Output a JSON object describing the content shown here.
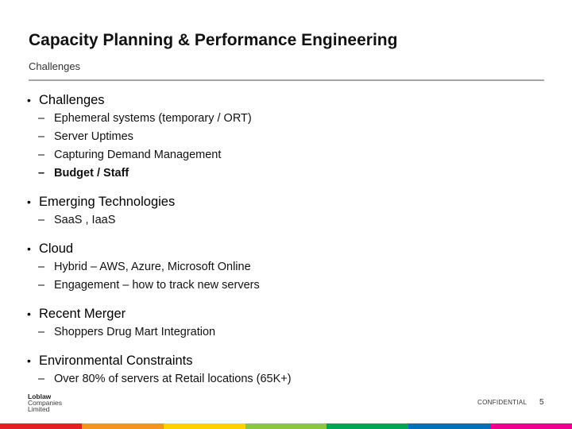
{
  "slide": {
    "title": "Capacity Planning & Performance Engineering",
    "subtitle": "Challenges"
  },
  "sections": [
    {
      "heading": "Challenges",
      "items": [
        {
          "text": "Ephemeral systems (temporary / ORT)"
        },
        {
          "text": "Server Uptimes"
        },
        {
          "text": "Capturing Demand Management"
        },
        {
          "text": "Budget / Staff",
          "bold": true
        }
      ]
    },
    {
      "heading": "Emerging Technologies",
      "items": [
        {
          "text": "SaaS , IaaS"
        }
      ]
    },
    {
      "heading": "Cloud",
      "items": [
        {
          "text": "Hybrid – AWS, Azure, Microsoft Online"
        },
        {
          "text": "Engagement – how to track new servers"
        }
      ]
    },
    {
      "heading": "Recent Merger",
      "items": [
        {
          "text": "Shoppers Drug Mart Integration"
        }
      ]
    },
    {
      "heading": "Environmental Constraints",
      "items": [
        {
          "text": "Over 80% of servers at Retail locations (65K+)"
        }
      ]
    }
  ],
  "bullet_symbol": "•",
  "dash_symbol": "–",
  "footer": {
    "logo_lines": [
      "Loblaw",
      "Companies",
      "Limited"
    ],
    "confidential": "CONFIDENTIAL",
    "page_number": "5"
  },
  "brand_colors": [
    "#e31e24",
    "#f7941d",
    "#ffd200",
    "#8dc63f",
    "#00a651",
    "#0072bc",
    "#ec008c"
  ]
}
